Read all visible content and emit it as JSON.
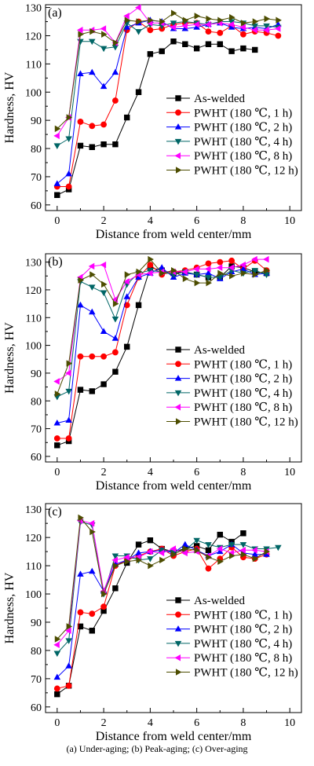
{
  "figure": {
    "caption": "(a) Under-aging; (b) Peak-aging; (c) Over-aging"
  },
  "chart_data": [
    {
      "type": "line",
      "panel_label": "(a)",
      "xlabel": "Distance from weld center/mm",
      "ylabel": "Hardness, HV",
      "xlim": [
        -0.5,
        10.5
      ],
      "ylim": [
        58,
        131
      ],
      "xticks": [
        0,
        2,
        4,
        6,
        8,
        10
      ],
      "yticks": [
        60,
        70,
        80,
        90,
        100,
        110,
        120,
        130
      ],
      "legend_position": "right",
      "series": [
        {
          "name": "As-welded",
          "color": "#000000",
          "marker": "square",
          "x": [
            0,
            0.5,
            1,
            1.5,
            2,
            2.5,
            3,
            3.5,
            4,
            4.5,
            5,
            5.5,
            6,
            6.5,
            7,
            7.5,
            8,
            8.5
          ],
          "y": [
            63.5,
            65.5,
            81,
            80.5,
            81.5,
            81.5,
            91,
            100,
            113.5,
            114.5,
            118,
            117,
            115.5,
            117,
            117,
            114.5,
            115.5,
            115
          ]
        },
        {
          "name": "PWHT (180 ℃, 1 h)",
          "color": "#ff0000",
          "marker": "circle",
          "x": [
            0,
            0.5,
            1,
            1.5,
            2,
            2.5,
            3,
            3.5,
            4,
            4.5,
            5,
            5.5,
            6,
            6.5,
            7,
            7.5,
            8,
            8.5,
            9,
            9.5
          ],
          "y": [
            66.5,
            66.5,
            89.5,
            88,
            88.5,
            97,
            122,
            125,
            122,
            122.5,
            124,
            124.5,
            124.5,
            121.5,
            121,
            123.5,
            120.5,
            121.5,
            121,
            120
          ]
        },
        {
          "name": "PWHT (180 ℃, 2 h)",
          "color": "#0000ff",
          "marker": "triangle-up",
          "x": [
            0,
            0.5,
            1,
            1.5,
            2,
            2.5,
            3,
            3.5,
            4,
            4.5,
            5,
            5.5,
            6,
            6.5,
            7,
            7.5,
            8,
            8.5,
            9,
            9.5
          ],
          "y": [
            67.5,
            71,
            106.5,
            107,
            102,
            107,
            123,
            124.5,
            125.5,
            125,
            122.5,
            122.5,
            123,
            124,
            124.5,
            123,
            122.5,
            123,
            122.5,
            124
          ]
        },
        {
          "name": "PWHT (180 ℃, 4 h)",
          "color": "#006666",
          "marker": "triangle-down",
          "x": [
            0,
            0.5,
            1,
            1.5,
            2,
            2.5,
            3,
            3.5,
            4,
            4.5,
            5,
            5.5,
            6,
            6.5,
            7,
            7.5,
            8,
            8.5,
            9,
            9.5
          ],
          "y": [
            81,
            83.5,
            118,
            118,
            115.5,
            116,
            124.5,
            121.5,
            124,
            123.5,
            124.5,
            125,
            124.5,
            124,
            125,
            125,
            124.5,
            123.5,
            123.5,
            123
          ]
        },
        {
          "name": "PWHT (180 ℃, 8 h)",
          "color": "#ff00ff",
          "marker": "triangle-left",
          "x": [
            0,
            0.5,
            1,
            1.5,
            2,
            2.5,
            3,
            3.5,
            4,
            4.5,
            5,
            5.5,
            6,
            6.5,
            7,
            7.5,
            8,
            8.5,
            9,
            9.5
          ],
          "y": [
            84.5,
            91,
            122,
            122,
            122.5,
            117.5,
            127,
            130,
            124.5,
            124.5,
            123,
            123.5,
            124,
            124,
            124.5,
            124,
            123,
            122,
            122,
            122.5
          ]
        },
        {
          "name": "PWHT (180 ℃, 12 h)",
          "color": "#4d4d00",
          "marker": "triangle-right",
          "x": [
            0,
            0.5,
            1,
            1.5,
            2,
            2.5,
            3,
            3.5,
            4,
            4.5,
            5,
            5.5,
            6,
            6.5,
            7,
            7.5,
            8,
            8.5,
            9,
            9.5
          ],
          "y": [
            87,
            91,
            120.5,
            121.5,
            120.5,
            117.5,
            125.5,
            125,
            125.5,
            125,
            128,
            125.5,
            127,
            126,
            125.5,
            126.5,
            124.5,
            125,
            126,
            125.5
          ]
        }
      ]
    },
    {
      "type": "line",
      "panel_label": "(b)",
      "xlabel": "Distance from weld center/mm",
      "ylabel": "Hardness, HV",
      "xlim": [
        -0.5,
        10.5
      ],
      "ylim": [
        58,
        133
      ],
      "xticks": [
        0,
        2,
        4,
        6,
        8,
        10
      ],
      "yticks": [
        60,
        70,
        80,
        90,
        100,
        110,
        120,
        130
      ],
      "legend_position": "right",
      "series": [
        {
          "name": "As-welded",
          "color": "#000000",
          "marker": "square",
          "x": [
            0,
            0.5,
            1,
            1.5,
            2,
            2.5,
            3,
            3.5,
            4,
            4.5,
            5,
            5.5,
            6,
            6.5,
            7,
            7.5,
            8,
            8.5,
            9
          ],
          "y": [
            64,
            65.5,
            84,
            83.5,
            86,
            90.5,
            99.5,
            114.5,
            128,
            127,
            126,
            126.5,
            125.5,
            124.5,
            124.5,
            128.5,
            128,
            126.5,
            126
          ]
        },
        {
          "name": "PWHT (180 ℃, 1 h)",
          "color": "#ff0000",
          "marker": "circle",
          "x": [
            0,
            0.5,
            1,
            1.5,
            2,
            2.5,
            3,
            3.5,
            4,
            4.5,
            5,
            5.5,
            6,
            6.5,
            7,
            7.5,
            8,
            8.5,
            9
          ],
          "y": [
            66.5,
            66.5,
            96,
            96,
            96,
            97.5,
            114.5,
            124.5,
            129,
            125.5,
            126.5,
            127,
            128,
            129.5,
            130,
            130.5,
            127.5,
            130.5,
            127
          ]
        },
        {
          "name": "PWHT (180 ℃, 2 h)",
          "color": "#0000ff",
          "marker": "triangle-up",
          "x": [
            0,
            0.5,
            1,
            1.5,
            2,
            2.5,
            3,
            3.5,
            4,
            4.5,
            5,
            5.5,
            6,
            6.5,
            7,
            7.5,
            8,
            8.5,
            9
          ],
          "y": [
            72,
            73,
            114.5,
            112,
            105,
            102.5,
            117.5,
            124.5,
            126,
            128,
            124.5,
            126,
            125.5,
            126,
            124,
            126.5,
            127.5,
            125.5,
            126
          ]
        },
        {
          "name": "PWHT (180 ℃, 4 h)",
          "color": "#006666",
          "marker": "triangle-down",
          "x": [
            0,
            0.5,
            1,
            1.5,
            2,
            2.5,
            3,
            3.5,
            4,
            4.5,
            5,
            5.5,
            6,
            6.5,
            7,
            7.5,
            8,
            8.5,
            9
          ],
          "y": [
            81.5,
            83.5,
            123,
            121,
            119,
            109.5,
            122,
            126,
            127,
            126.5,
            125.5,
            126.5,
            125.5,
            124.5,
            124.5,
            127,
            126,
            127,
            125.5
          ]
        },
        {
          "name": "PWHT (180 ℃, 8 h)",
          "color": "#ff00ff",
          "marker": "triangle-left",
          "x": [
            0,
            0.5,
            1,
            1.5,
            2,
            2.5,
            3,
            3.5,
            4,
            4.5,
            5,
            5.5,
            6,
            6.5,
            7,
            7.5,
            8,
            8.5,
            9
          ],
          "y": [
            87,
            90,
            124.5,
            128.5,
            129,
            116.5,
            123,
            125.5,
            126,
            126.5,
            126.5,
            126.5,
            127.5,
            127.5,
            128,
            128,
            129,
            131,
            131
          ]
        },
        {
          "name": "PWHT (180 ℃, 12 h)",
          "color": "#4d4d00",
          "marker": "triangle-right",
          "x": [
            0,
            0.5,
            1,
            1.5,
            2,
            2.5,
            3,
            3.5,
            4,
            4.5,
            5,
            5.5,
            6,
            6.5,
            7,
            7.5,
            8,
            8.5,
            9
          ],
          "y": [
            82.5,
            93.5,
            123.5,
            125.5,
            122,
            115,
            125.5,
            126.5,
            131,
            126,
            127,
            124,
            122.5,
            122.5,
            126,
            125,
            126,
            125.5,
            127
          ]
        }
      ]
    },
    {
      "type": "line",
      "panel_label": "(c)",
      "xlabel": "Distance from weld center/mm",
      "ylabel": "Hardness, HV",
      "xlim": [
        -0.5,
        10.5
      ],
      "ylim": [
        58,
        132
      ],
      "xticks": [
        0,
        2,
        4,
        6,
        8,
        10
      ],
      "yticks": [
        60,
        70,
        80,
        90,
        100,
        110,
        120,
        130
      ],
      "legend_position": "right",
      "series": [
        {
          "name": "As-welded",
          "color": "#000000",
          "marker": "square",
          "x": [
            0,
            0.5,
            1,
            1.5,
            2,
            2.5,
            3,
            3.5,
            4,
            4.5,
            5,
            5.5,
            6,
            6.5,
            7,
            7.5,
            8
          ],
          "y": [
            64.5,
            67.5,
            88.5,
            87,
            94,
            102,
            111,
            117.5,
            119,
            116,
            115,
            116,
            117,
            115.5,
            121,
            118.5,
            121.5
          ]
        },
        {
          "name": "PWHT (180 ℃, 1 h)",
          "color": "#ff0000",
          "marker": "circle",
          "x": [
            0,
            0.5,
            1,
            1.5,
            2,
            2.5,
            3,
            3.5,
            4,
            4.5,
            5,
            5.5,
            6,
            6.5,
            7,
            7.5,
            8,
            8.5,
            9
          ],
          "y": [
            66.5,
            67.5,
            93.5,
            93,
            95.5,
            110,
            112,
            113.5,
            115,
            116,
            113.5,
            115,
            116,
            109,
            112.5,
            116.5,
            113,
            112.5,
            114
          ]
        },
        {
          "name": "PWHT (180 ℃, 2 h)",
          "color": "#0000ff",
          "marker": "triangle-up",
          "x": [
            0,
            0.5,
            1,
            1.5,
            2,
            2.5,
            3,
            3.5,
            4,
            4.5,
            5,
            5.5,
            6,
            6.5,
            7,
            7.5,
            8,
            8.5,
            9
          ],
          "y": [
            70.5,
            74.5,
            107,
            108,
            101,
            110.5,
            112,
            114.5,
            115,
            115.5,
            114.5,
            117.5,
            115.5,
            113.5,
            115,
            117.5,
            114.5,
            114,
            114
          ]
        },
        {
          "name": "PWHT (180 ℃, 4 h)",
          "color": "#006666",
          "marker": "triangle-down",
          "x": [
            0,
            0.5,
            1,
            1.5,
            2,
            2.5,
            3,
            3.5,
            4,
            4.5,
            5,
            5.5,
            6,
            6.5,
            7,
            7.5,
            8,
            8.5,
            9,
            9.5
          ],
          "y": [
            79,
            83.5,
            125.5,
            124.5,
            100,
            113.5,
            113.5,
            112,
            112.5,
            115.5,
            115,
            115.5,
            119,
            117.5,
            116.5,
            117.5,
            117.5,
            116,
            116,
            116.5
          ]
        },
        {
          "name": "PWHT (180 ℃, 8 h)",
          "color": "#ff00ff",
          "marker": "triangle-left",
          "x": [
            0,
            0.5,
            1,
            1.5,
            2,
            2.5,
            3,
            3.5,
            4,
            4.5,
            5,
            5.5,
            6,
            6.5,
            7,
            7.5,
            8,
            8.5,
            9
          ],
          "y": [
            82,
            87,
            126,
            125,
            101,
            112,
            113,
            113,
            115,
            114.5,
            116,
            114.5,
            115,
            113.5,
            116,
            114.5,
            115.5,
            115.5,
            115
          ]
        },
        {
          "name": "PWHT (180 ℃, 12 h)",
          "color": "#4d4d00",
          "marker": "triangle-right",
          "x": [
            0,
            0.5,
            1,
            1.5,
            2,
            2.5,
            3,
            3.5,
            4,
            4.5,
            5,
            5.5,
            6,
            6.5,
            7,
            7.5,
            8,
            8.5,
            9
          ],
          "y": [
            84,
            88.5,
            127,
            122,
            100,
            110,
            111.5,
            112,
            110,
            112,
            114,
            116,
            115.5,
            113,
            111.5,
            113.5,
            114,
            112.5,
            115
          ]
        }
      ]
    }
  ]
}
